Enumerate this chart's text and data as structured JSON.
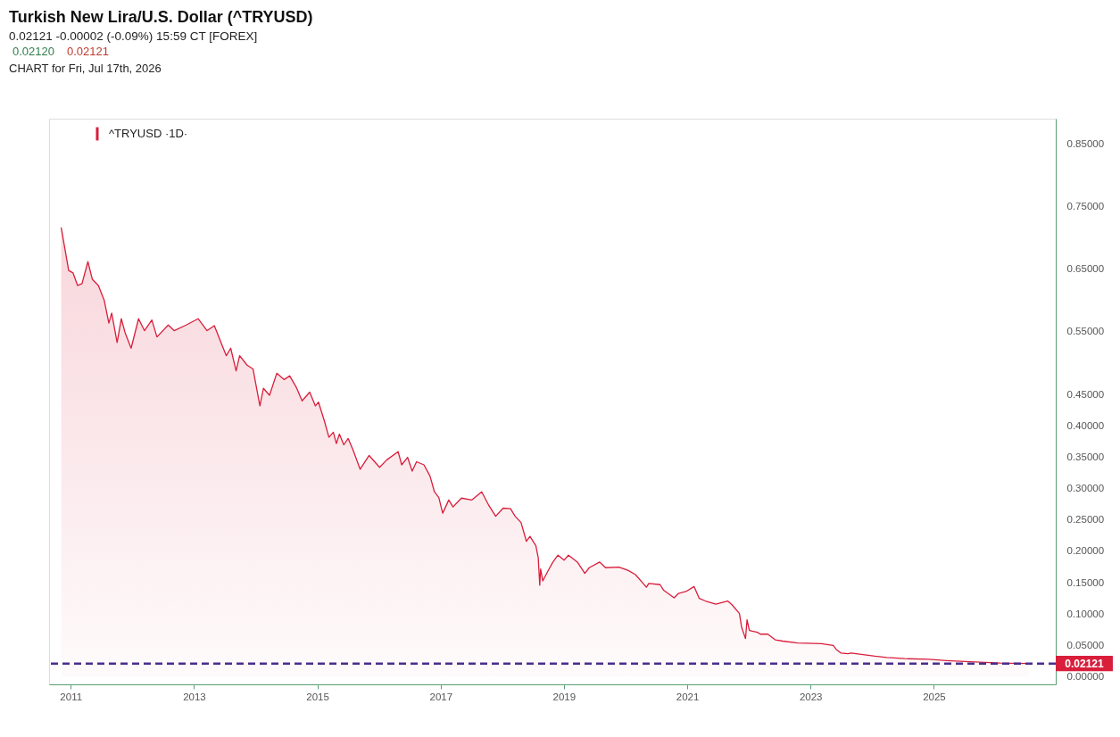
{
  "chart_data": {
    "type": "area",
    "title": "Turkish New Lira/U.S. Dollar (^TRYUSD)",
    "subtitle": "0.02121 -0.00002 (-0.09%) 15:59 CT [FOREX]",
    "annotations": [
      "0.02120",
      "0.02121",
      "CHART for Fri, Jul 17th, 2026"
    ],
    "x": [
      "2010-11-06",
      "2010-12-02",
      "2010-12-20",
      "2011-01-15",
      "2011-02-11",
      "2011-03-09",
      "2011-04-13",
      "2011-05-09",
      "2011-06-14",
      "2011-07-19",
      "2011-08-15",
      "2011-09-01",
      "2011-10-03",
      "2011-10-28",
      "2011-11-19",
      "2011-12-25",
      "2012-02-07",
      "2012-03-13",
      "2012-04-26",
      "2012-05-26",
      "2012-08-01",
      "2012-09-05",
      "2012-11-15",
      "2013-01-25",
      "2013-03-19",
      "2013-05-01",
      "2013-06-14",
      "2013-07-11",
      "2013-08-06",
      "2013-09-07",
      "2013-09-28",
      "2013-11-11",
      "2013-12-16",
      "2014-01-26",
      "2014-02-16",
      "2014-03-24",
      "2014-05-06",
      "2014-06-19",
      "2014-07-21",
      "2014-08-29",
      "2014-10-03",
      "2014-11-17",
      "2014-12-21",
      "2015-01-08",
      "2015-02-12",
      "2015-03-11",
      "2015-04-06",
      "2015-04-24",
      "2015-05-12",
      "2015-06-07",
      "2015-07-03",
      "2015-07-30",
      "2015-09-12",
      "2015-11-04",
      "2016-01-05",
      "2016-02-17",
      "2016-04-24",
      "2016-05-15",
      "2016-06-19",
      "2016-07-16",
      "2016-08-11",
      "2016-09-24",
      "2016-10-30",
      "2016-11-25",
      "2016-12-21",
      "2017-01-13",
      "2017-02-18",
      "2017-03-15",
      "2017-05-04",
      "2017-07-05",
      "2017-09-01",
      "2017-10-14",
      "2017-11-23",
      "2018-01-06",
      "2018-02-19",
      "2018-03-18",
      "2018-04-22",
      "2018-05-24",
      "2018-06-14",
      "2018-07-19",
      "2018-08-02",
      "2018-08-11",
      "2018-08-16",
      "2018-08-29",
      "2018-09-27",
      "2018-10-28",
      "2018-11-27",
      "2019-01-02",
      "2019-01-28",
      "2019-03-22",
      "2019-05-05",
      "2019-05-31",
      "2019-08-01",
      "2019-09-05",
      "2019-11-23",
      "2020-01-15",
      "2020-02-29",
      "2020-05-04",
      "2020-05-18",
      "2020-07-24",
      "2020-08-14",
      "2020-10-15",
      "2020-11-10",
      "2020-12-24",
      "2021-02-10",
      "2021-03-13",
      "2021-04-18",
      "2021-06-19",
      "2021-08-28",
      "2021-09-23",
      "2021-11-06",
      "2021-11-19",
      "2021-12-12",
      "2021-12-21",
      "2022-01-04",
      "2022-02-20",
      "2022-03-10",
      "2022-04-23",
      "2022-06-06",
      "2022-07-20",
      "2022-10-16",
      "2023-03-06",
      "2023-05-16",
      "2023-06-02",
      "2023-06-29",
      "2023-08-12",
      "2023-08-29",
      "2024-01-18",
      "2024-03-28",
      "2024-07-12",
      "2024-11-30",
      "2025-03-16",
      "2025-08-04",
      "2026-01-27",
      "2026-07-17"
    ],
    "series": [
      {
        "name": "^TRYUSD ·1D·",
        "color": "#d81e3b",
        "values": [
          0.716,
          0.676,
          0.648,
          0.644,
          0.624,
          0.627,
          0.662,
          0.634,
          0.624,
          0.6,
          0.564,
          0.58,
          0.533,
          0.571,
          0.549,
          0.524,
          0.571,
          0.552,
          0.569,
          0.542,
          0.561,
          0.552,
          0.561,
          0.571,
          0.552,
          0.56,
          0.53,
          0.512,
          0.524,
          0.488,
          0.512,
          0.497,
          0.491,
          0.432,
          0.46,
          0.449,
          0.484,
          0.474,
          0.48,
          0.462,
          0.44,
          0.454,
          0.432,
          0.438,
          0.408,
          0.382,
          0.39,
          0.372,
          0.387,
          0.37,
          0.38,
          0.363,
          0.331,
          0.353,
          0.334,
          0.346,
          0.359,
          0.338,
          0.35,
          0.328,
          0.343,
          0.338,
          0.32,
          0.295,
          0.286,
          0.261,
          0.282,
          0.271,
          0.285,
          0.282,
          0.295,
          0.273,
          0.256,
          0.269,
          0.268,
          0.256,
          0.246,
          0.216,
          0.224,
          0.209,
          0.19,
          0.146,
          0.172,
          0.153,
          0.168,
          0.183,
          0.194,
          0.186,
          0.194,
          0.183,
          0.165,
          0.174,
          0.183,
          0.174,
          0.175,
          0.17,
          0.163,
          0.143,
          0.149,
          0.147,
          0.138,
          0.126,
          0.133,
          0.136,
          0.144,
          0.125,
          0.121,
          0.116,
          0.121,
          0.115,
          0.101,
          0.079,
          0.061,
          0.091,
          0.074,
          0.071,
          0.068,
          0.068,
          0.059,
          0.057,
          0.054,
          0.053,
          0.05,
          0.044,
          0.038,
          0.037,
          0.038,
          0.033,
          0.031,
          0.029,
          0.028,
          0.026,
          0.024,
          0.022,
          0.02121
        ]
      }
    ],
    "xlim": [
      "2010-08-26",
      "2026-12-24"
    ],
    "xticks": [
      "2011",
      "2013",
      "2015",
      "2017",
      "2019",
      "2021",
      "2023",
      "2025"
    ],
    "ylim": [
      -0.012,
      0.89
    ],
    "yticks": [
      {
        "value": 0,
        "label": "0.00000"
      },
      {
        "value": 0.05,
        "label": "0.05000"
      },
      {
        "value": 0.1,
        "label": "0.10000"
      },
      {
        "value": 0.15,
        "label": "0.15000"
      },
      {
        "value": 0.2,
        "label": "0.20000"
      },
      {
        "value": 0.25,
        "label": "0.25000"
      },
      {
        "value": 0.3,
        "label": "0.30000"
      },
      {
        "value": 0.35,
        "label": "0.35000"
      },
      {
        "value": 0.4,
        "label": "0.40000"
      },
      {
        "value": 0.45,
        "label": "0.45000"
      },
      {
        "value": 0.55,
        "label": "0.55000"
      },
      {
        "value": 0.65,
        "label": "0.65000"
      },
      {
        "value": 0.75,
        "label": "0.75000"
      },
      {
        "value": 0.85,
        "label": "0.85000"
      }
    ],
    "ref_lines": [
      {
        "axis": "y",
        "value": 0.02121,
        "label": "0.02121",
        "color": "#4a2d8c",
        "line_style": "dashed"
      }
    ],
    "legend": "top left"
  }
}
